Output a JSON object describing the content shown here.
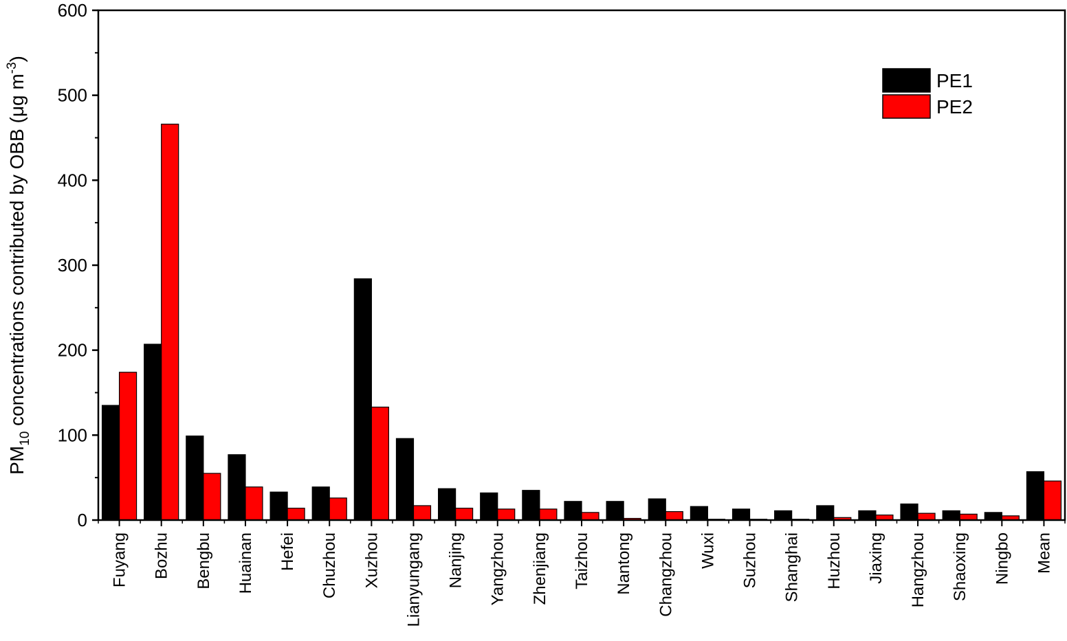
{
  "chart_data": {
    "type": "bar",
    "ylabel_main": "PM",
    "ylabel_sub": "10",
    "ylabel_rest": " concentrations contributed by OBB (μg m",
    "ylabel_sup": "-3",
    "ylabel_close": ")",
    "xlabel": "",
    "ylim": [
      0,
      600
    ],
    "yticks": [
      0,
      100,
      200,
      300,
      400,
      500,
      600
    ],
    "grid": false,
    "legend_position": "top-right",
    "categories": [
      "Fuyang",
      "Bozhu",
      "Bengbu",
      "Huainan",
      "Hefei",
      "Chuzhou",
      "Xuzhou",
      "Lianyungang",
      "Nanjing",
      "Yangzhou",
      "Zhenjiang",
      "Taizhou",
      "Nantong",
      "Changzhou",
      "Wuxi",
      "Suzhou",
      "Shanghai",
      "Huzhou",
      "Jiaxing",
      "Hangzhou",
      "Shaoxing",
      "Ningbo",
      "Mean"
    ],
    "series": [
      {
        "name": "PE1",
        "color": "#000000",
        "values": [
          135,
          207,
          99,
          77,
          33,
          39,
          284,
          96,
          37,
          32,
          35,
          22,
          22,
          25,
          16,
          13,
          11,
          17,
          11,
          19,
          11,
          9,
          57
        ]
      },
      {
        "name": "PE2",
        "color": "#ff0000",
        "values": [
          174,
          466,
          55,
          39,
          14,
          26,
          133,
          17,
          14,
          13,
          13,
          9,
          2,
          10,
          1,
          1,
          1,
          3,
          6,
          8,
          7,
          5,
          46
        ]
      }
    ]
  }
}
